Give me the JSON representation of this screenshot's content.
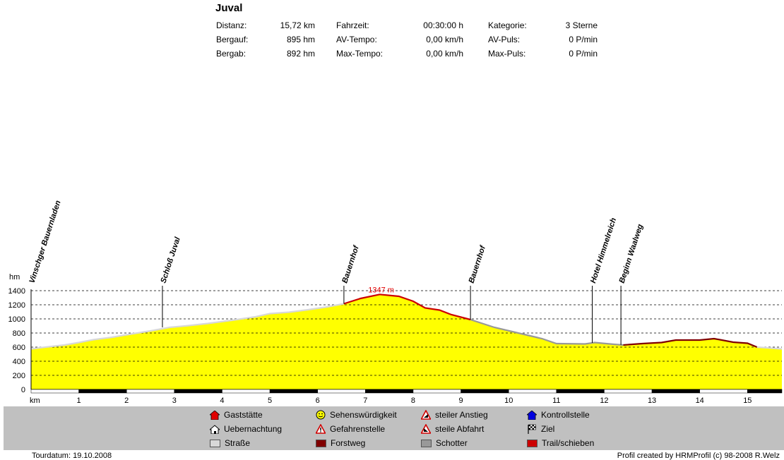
{
  "tour": {
    "title": "Juval",
    "stats": [
      {
        "label": "Distanz:",
        "value": "15,72 km"
      },
      {
        "label": "Bergauf:",
        "value": "895 hm"
      },
      {
        "label": "Bergab:",
        "value": "892 hm"
      },
      {
        "label": "Fahrzeit:",
        "value": "00:30:00 h"
      },
      {
        "label": "AV-Tempo:",
        "value": "0,00 km/h"
      },
      {
        "label": "Max-Tempo:",
        "value": "0,00 km/h"
      },
      {
        "label": "Kategorie:",
        "value": "3 Sterne"
      },
      {
        "label": "AV-Puls:",
        "value": "0 P/min"
      },
      {
        "label": "Max-Puls:",
        "value": "0 P/min"
      }
    ]
  },
  "chart_data": {
    "type": "area",
    "xlabel": "km",
    "ylabel": "hm",
    "xlim": [
      0,
      15.72
    ],
    "ylim": [
      0,
      1400
    ],
    "xticks": [
      1,
      2,
      3,
      4,
      5,
      6,
      7,
      8,
      9,
      10,
      11,
      12,
      13,
      14,
      15
    ],
    "yticks": [
      0,
      200,
      400,
      600,
      800,
      1000,
      1200,
      1400
    ],
    "grid": true,
    "fill_color": "#ffff00",
    "peak_label": "1347 m",
    "peak": {
      "x": 7.3,
      "y": 1347
    },
    "profile": [
      {
        "x": 0.0,
        "y": 575
      },
      {
        "x": 0.3,
        "y": 600
      },
      {
        "x": 0.7,
        "y": 630
      },
      {
        "x": 1.0,
        "y": 665
      },
      {
        "x": 1.3,
        "y": 705
      },
      {
        "x": 1.7,
        "y": 740
      },
      {
        "x": 2.0,
        "y": 775
      },
      {
        "x": 2.5,
        "y": 830
      },
      {
        "x": 2.9,
        "y": 880
      },
      {
        "x": 3.3,
        "y": 905
      },
      {
        "x": 3.7,
        "y": 935
      },
      {
        "x": 4.2,
        "y": 980
      },
      {
        "x": 4.7,
        "y": 1030
      },
      {
        "x": 5.0,
        "y": 1075
      },
      {
        "x": 5.4,
        "y": 1095
      },
      {
        "x": 5.8,
        "y": 1130
      },
      {
        "x": 6.2,
        "y": 1170
      },
      {
        "x": 6.55,
        "y": 1215
      },
      {
        "x": 6.9,
        "y": 1290
      },
      {
        "x": 7.3,
        "y": 1347
      },
      {
        "x": 7.7,
        "y": 1320
      },
      {
        "x": 8.0,
        "y": 1250
      },
      {
        "x": 8.25,
        "y": 1155
      },
      {
        "x": 8.55,
        "y": 1125
      },
      {
        "x": 8.8,
        "y": 1060
      },
      {
        "x": 9.2,
        "y": 990
      },
      {
        "x": 9.7,
        "y": 880
      },
      {
        "x": 10.2,
        "y": 800
      },
      {
        "x": 10.7,
        "y": 720
      },
      {
        "x": 11.0,
        "y": 650
      },
      {
        "x": 11.6,
        "y": 645
      },
      {
        "x": 11.8,
        "y": 665
      },
      {
        "x": 12.2,
        "y": 640
      },
      {
        "x": 12.4,
        "y": 630
      },
      {
        "x": 12.8,
        "y": 650
      },
      {
        "x": 13.2,
        "y": 665
      },
      {
        "x": 13.5,
        "y": 700
      },
      {
        "x": 14.0,
        "y": 700
      },
      {
        "x": 14.3,
        "y": 720
      },
      {
        "x": 14.7,
        "y": 670
      },
      {
        "x": 15.0,
        "y": 655
      },
      {
        "x": 15.2,
        "y": 600
      },
      {
        "x": 15.72,
        "y": 575
      }
    ],
    "surface_segments": [
      {
        "from": 0.0,
        "to": 6.55,
        "surface": "Straße",
        "color": "#d8d8d8"
      },
      {
        "from": 6.55,
        "to": 9.2,
        "surface": "Trail/schieben",
        "color": "#cc0000"
      },
      {
        "from": 9.2,
        "to": 12.4,
        "surface": "Schotter",
        "color": "#999999"
      },
      {
        "from": 12.4,
        "to": 15.2,
        "surface": "Forstweg",
        "color": "#800000"
      },
      {
        "from": 15.2,
        "to": 15.72,
        "surface": "Straße",
        "color": "#d8d8d8"
      }
    ],
    "waypoints": [
      {
        "x": 0.0,
        "y": 575,
        "label": "Vinschger Bauernladen"
      },
      {
        "x": 2.75,
        "y": 880,
        "label": "Schloß Juval"
      },
      {
        "x": 6.55,
        "y": 1215,
        "label": "Bauernhof"
      },
      {
        "x": 9.2,
        "y": 990,
        "label": "Bauernhof"
      },
      {
        "x": 11.75,
        "y": 660,
        "label": "Hotel Himmelreich"
      },
      {
        "x": 12.35,
        "y": 632,
        "label": "Beginn Waalweg"
      }
    ]
  },
  "legend": [
    {
      "label": "Gaststätte",
      "icon": "red-house-icon"
    },
    {
      "label": "Uebernachtung",
      "icon": "house-icon"
    },
    {
      "label": "Straße",
      "icon": "swatch",
      "color": "#d8d8d8"
    },
    {
      "label": "Sehenswürdigkeit",
      "icon": "smiley-icon"
    },
    {
      "label": "Gefahrenstelle",
      "icon": "warning-icon"
    },
    {
      "label": "Forstweg",
      "icon": "swatch",
      "color": "#800000"
    },
    {
      "label": "steiler Anstieg",
      "icon": "steep-ascent-icon"
    },
    {
      "label": "steile Abfahrt",
      "icon": "steep-descent-icon"
    },
    {
      "label": "Schotter",
      "icon": "swatch",
      "color": "#999999"
    },
    {
      "label": "Kontrollstelle",
      "icon": "checkpoint-icon"
    },
    {
      "label": "Ziel",
      "icon": "finish-flag-icon"
    },
    {
      "label": "Trail/schieben",
      "icon": "swatch",
      "color": "#cc0000"
    }
  ],
  "footer": {
    "date": "Tourdatum: 19.10.2008",
    "credit": "Profil created by HRMProfil (c) 98-2008 R.Welz"
  }
}
